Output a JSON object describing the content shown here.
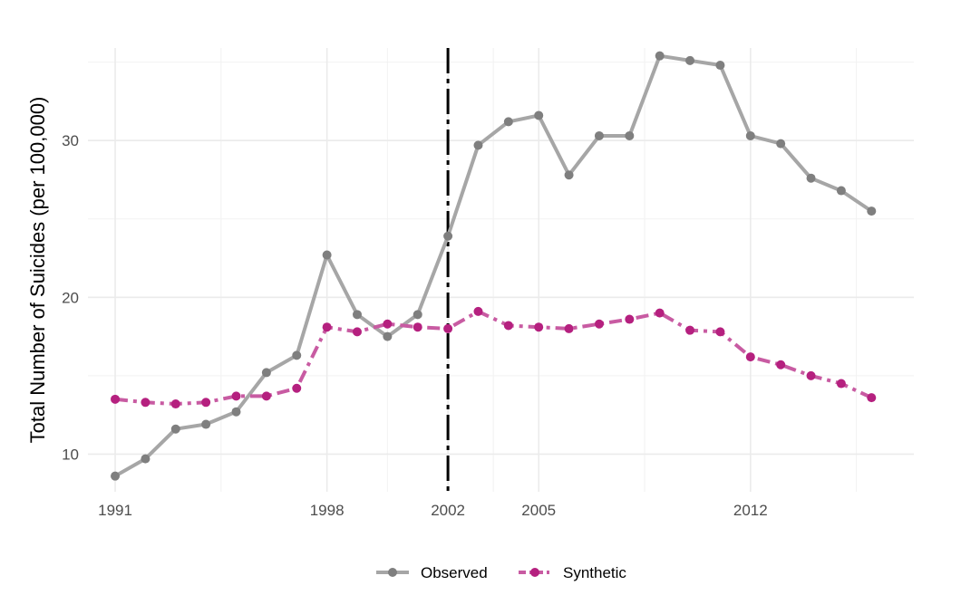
{
  "chart_data": {
    "type": "line",
    "title": "",
    "xlabel": "",
    "ylabel": "Total Number of Suicides (per 100,000)",
    "x": [
      1991,
      1992,
      1993,
      1994,
      1995,
      1996,
      1997,
      1998,
      1999,
      2000,
      2001,
      2002,
      2003,
      2004,
      2005,
      2006,
      2007,
      2008,
      2009,
      2010,
      2011,
      2012,
      2013,
      2014,
      2015,
      2016
    ],
    "x_ticks": [
      1991,
      1998,
      2002,
      2005,
      2012
    ],
    "xlim": [
      1990.1,
      2017.4
    ],
    "y_ticks": [
      10,
      20,
      30
    ],
    "ylim": [
      7.6,
      35.9
    ],
    "series": [
      {
        "name": "Observed",
        "color": "#a6a6a6",
        "point_color": "#7f7f7f",
        "line_style": "solid",
        "values": [
          8.6,
          9.7,
          11.6,
          11.9,
          12.7,
          15.2,
          16.3,
          22.7,
          18.9,
          17.5,
          18.9,
          23.9,
          29.7,
          31.2,
          31.6,
          27.8,
          30.3,
          30.3,
          35.4,
          35.1,
          34.8,
          30.3,
          29.8,
          27.6,
          26.8,
          25.5
        ]
      },
      {
        "name": "Synthetic",
        "color": "#c85ba2",
        "point_color": "#b5207f",
        "line_style": "dashdot",
        "values": [
          13.5,
          13.3,
          13.2,
          13.3,
          13.7,
          13.7,
          14.2,
          18.1,
          17.8,
          18.3,
          18.1,
          18.0,
          19.1,
          18.2,
          18.1,
          18.0,
          18.3,
          18.6,
          19.0,
          17.9,
          17.8,
          16.2,
          15.7,
          15.0,
          14.5,
          13.6
        ]
      }
    ],
    "vline": {
      "x": 2002,
      "style": "longdash",
      "color": "#000000"
    },
    "grid": true,
    "legend": "bottom"
  }
}
